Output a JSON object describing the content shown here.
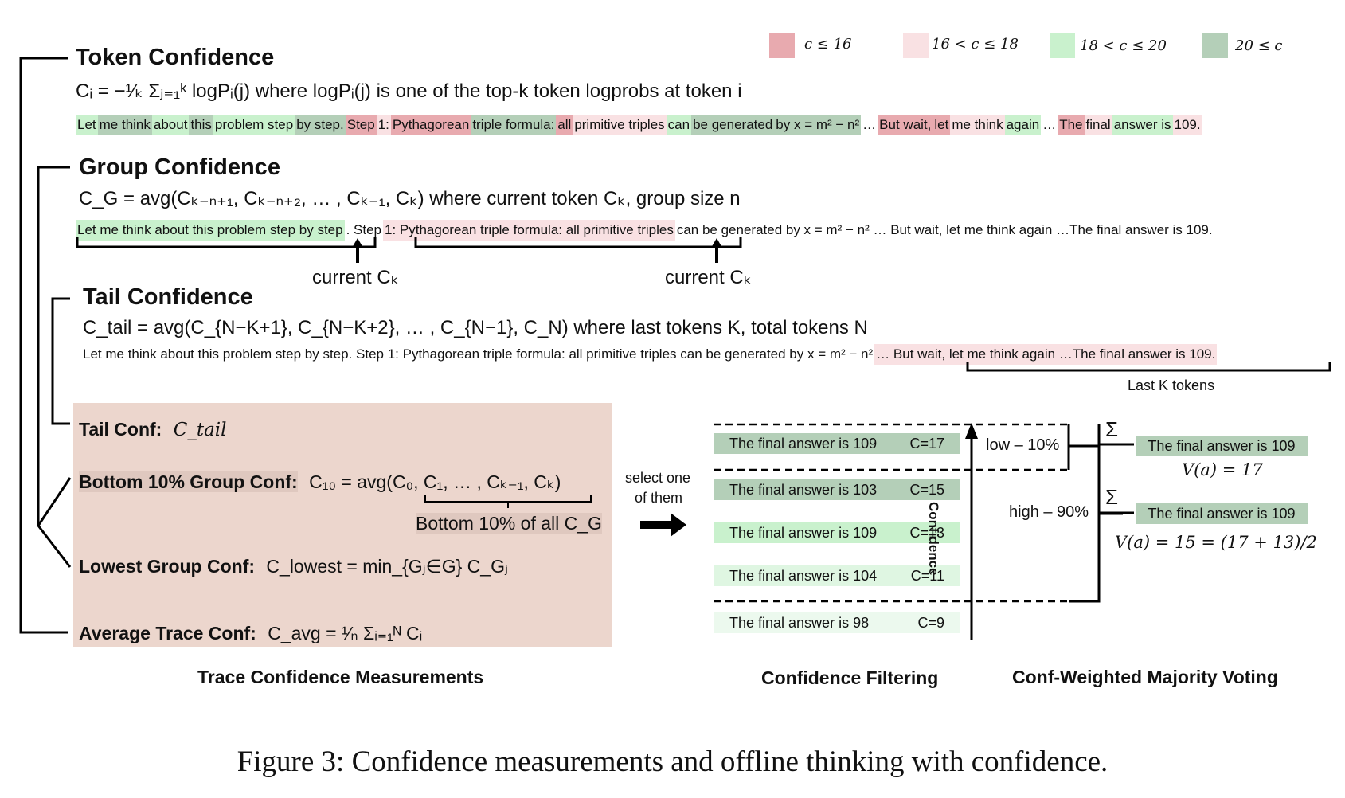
{
  "legend": [
    {
      "label": "c ≤ 16",
      "color": "#e8aaaf"
    },
    {
      "label": "16 < c ≤ 18",
      "color": "#f9e1e3"
    },
    {
      "label": "18 < c ≤ 20",
      "color": "#c9f1cd"
    },
    {
      "label": "20 ≤ c",
      "color": "#b4cfb8"
    }
  ],
  "token": {
    "title": "Token Confidence",
    "formula": "Cᵢ = −¹⁄ₖ Σⱼ₌₁ᵏ logPᵢ(j) where logPᵢ(j) is one of the top-k token logprobs at token i",
    "tokens": [
      {
        "t": "Let",
        "c": "c3"
      },
      {
        "t": "me think",
        "c": "c4"
      },
      {
        "t": "about",
        "c": "c3"
      },
      {
        "t": "this",
        "c": "c4"
      },
      {
        "t": "problem step",
        "c": "c3"
      },
      {
        "t": "by step.",
        "c": "c4"
      },
      {
        "t": "Step",
        "c": "c1"
      },
      {
        "t": "1:",
        "c": "c2"
      },
      {
        "t": "Pythagorean",
        "c": "c1"
      },
      {
        "t": "triple formula:",
        "c": "c4"
      },
      {
        "t": "all",
        "c": "c1"
      },
      {
        "t": "primitive triples",
        "c": "c2"
      },
      {
        "t": "can",
        "c": "c3"
      },
      {
        "t": "be generated",
        "c": "c4"
      },
      {
        "t": "by x = m² − n²",
        "c": "c4"
      },
      {
        "t": "…",
        "c": "c0"
      },
      {
        "t": "But wait,",
        "c": "c1"
      },
      {
        "t": "let",
        "c": "c1"
      },
      {
        "t": "me think",
        "c": "c2"
      },
      {
        "t": "again",
        "c": "c3"
      },
      {
        "t": "…",
        "c": "c0"
      },
      {
        "t": "The",
        "c": "c1"
      },
      {
        "t": "final",
        "c": "c2"
      },
      {
        "t": "answer is",
        "c": "c3"
      },
      {
        "t": "109.",
        "c": "c2"
      }
    ]
  },
  "group": {
    "title": "Group Confidence",
    "formula": "C_G = avg(Cₖ₋ₙ₊₁, Cₖ₋ₙ₊₂, … , Cₖ₋₁, Cₖ) where current token Cₖ, group size n",
    "seg1": "Let me think about this problem step by step",
    "seg2": ". Step",
    "seg3": "1: Pythagorean triple formula: all primitive triples",
    "seg4": "can be generated by x = m² − n² … But wait, let me think again …The final answer is 109.",
    "current1": "current Cₖ",
    "current2": "current  Cₖ"
  },
  "tail": {
    "title": "Tail Confidence",
    "formula": "C_tail = avg(C_{N−K+1}, C_{N−K+2}, … , C_{N−1}, C_N) where last tokens K, total tokens N",
    "plain": "Let me think about this problem step by step. Step 1: Pythagorean triple formula: all primitive triples can be generated by x = m² − n²",
    "highlight": "… But wait, let me think again …The final answer is 109.",
    "last_k": "Last K tokens"
  },
  "panel": {
    "tail_label": "Tail Conf:",
    "tail_formula": "C_tail",
    "bottom_label": "Bottom 10% Group Conf:",
    "bottom_formula": "C₁₀ = avg(C₀, C₁, … , Cₖ₋₁, Cₖ)",
    "bottom_note": "Bottom 10% of all C_G",
    "lowest_label": "Lowest Group Conf:",
    "lowest_formula": "C_lowest = min_{Gⱼ∈G} C_Gⱼ",
    "avg_label": "Average Trace Conf:",
    "avg_formula": "C_avg = ¹⁄ₙ Σᵢ₌₁ᴺ Cᵢ"
  },
  "select": {
    "line1": "select one",
    "line2": "of them"
  },
  "filter": {
    "answers": [
      {
        "text": "The final answer is 109",
        "conf": "C=17",
        "color": "#b4cfb8"
      },
      {
        "text": "The final answer is 103",
        "conf": "C=15",
        "color": "#b4cfb8"
      },
      {
        "text": "The final answer is 109",
        "conf": "C=13",
        "color": "#c9f1cd"
      },
      {
        "text": "The final answer is 104",
        "conf": "C=11",
        "color": "#dff6e2"
      },
      {
        "text": "The final answer is 98",
        "conf": "C=9",
        "color": "#ecf9ee"
      }
    ],
    "axis_label": "Confidence",
    "low": "low – 10%",
    "high": "high – 90%"
  },
  "voting": {
    "sum": "Σ",
    "top_answer": "The final answer is 109",
    "top_value": "V(a) = 17",
    "bottom_answer": "The final answer is 109",
    "bottom_value": "V(a) = 15 = (17 + 13)/2"
  },
  "sections": {
    "trace": "Trace Confidence Measurements",
    "filtering": "Confidence Filtering",
    "voting": "Conf-Weighted Majority Voting"
  },
  "caption": "Figure 3: Confidence measurements and offline thinking with confidence."
}
